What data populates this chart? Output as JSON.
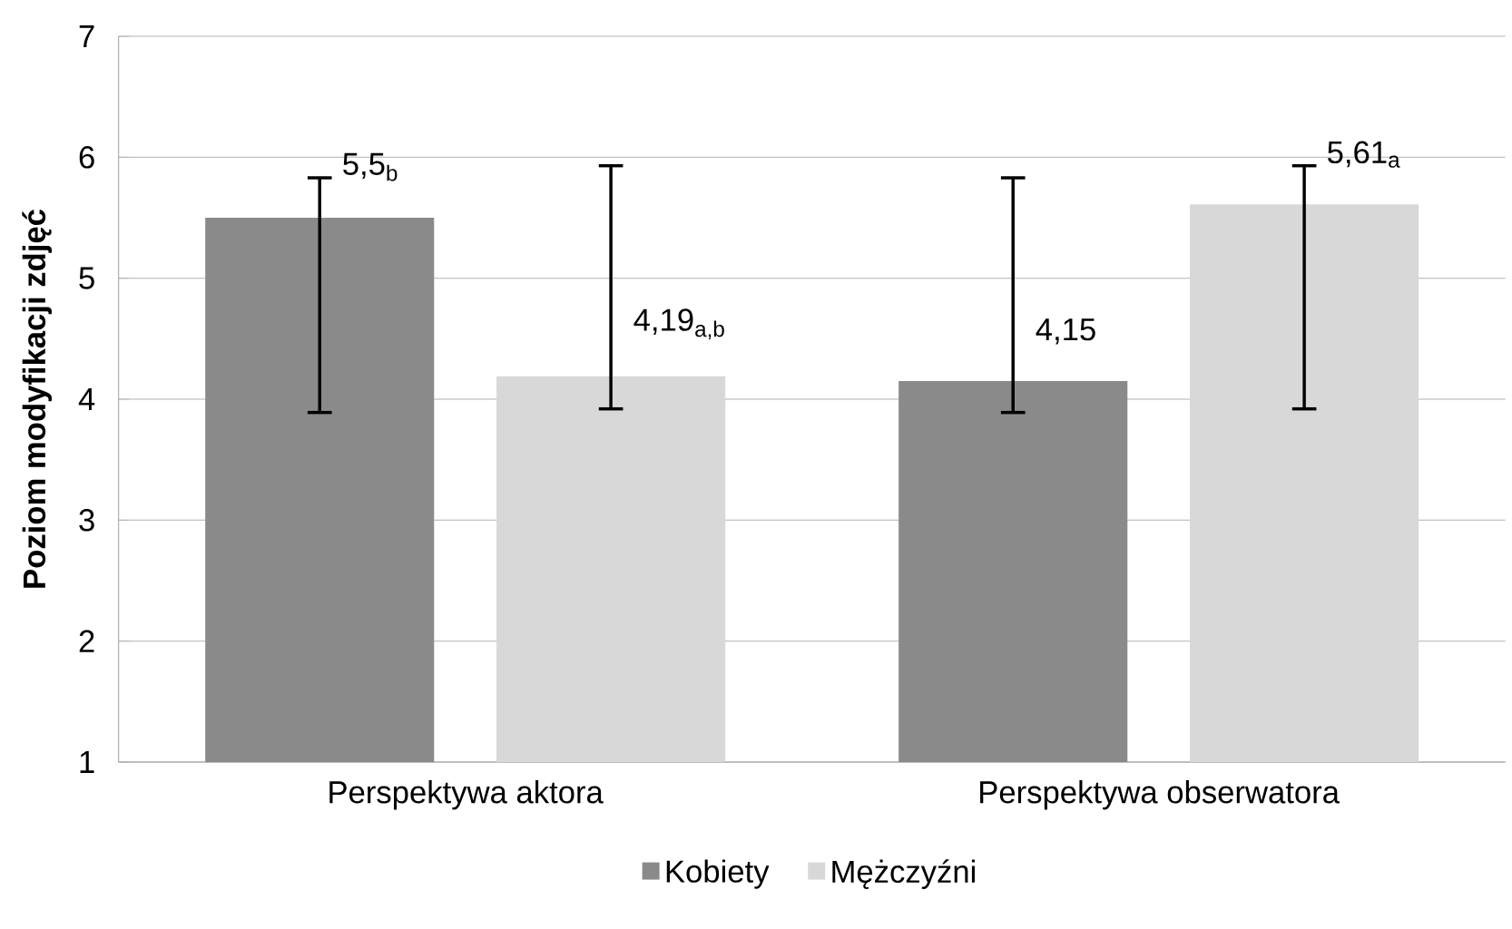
{
  "chart_data": {
    "type": "bar",
    "ylabel": "Poziom modyfikacji zdjęć",
    "categories": [
      "Perspektywa aktora",
      "Perspektywa obserwatora"
    ],
    "series": [
      {
        "name": "Kobiety",
        "color": "#8a8a8a",
        "values": [
          5.5,
          4.15
        ],
        "errors": [
          [
            3.89,
            5.83
          ],
          [
            3.89,
            5.83
          ]
        ],
        "value_labels": [
          "5,5$_{b}$",
          "4,15"
        ]
      },
      {
        "name": "Mężczyźni",
        "color": "#d8d8d8",
        "values": [
          4.19,
          5.61
        ],
        "errors": [
          [
            3.92,
            5.93
          ],
          [
            3.92,
            5.93
          ]
        ],
        "value_labels": [
          "4,19$_{a,b}$",
          "5,61$_{a}$"
        ]
      }
    ],
    "ylim": [
      1,
      7
    ],
    "yticks": [
      1,
      2,
      3,
      4,
      5,
      6,
      7
    ],
    "grid": "y",
    "legend": "bottom"
  }
}
